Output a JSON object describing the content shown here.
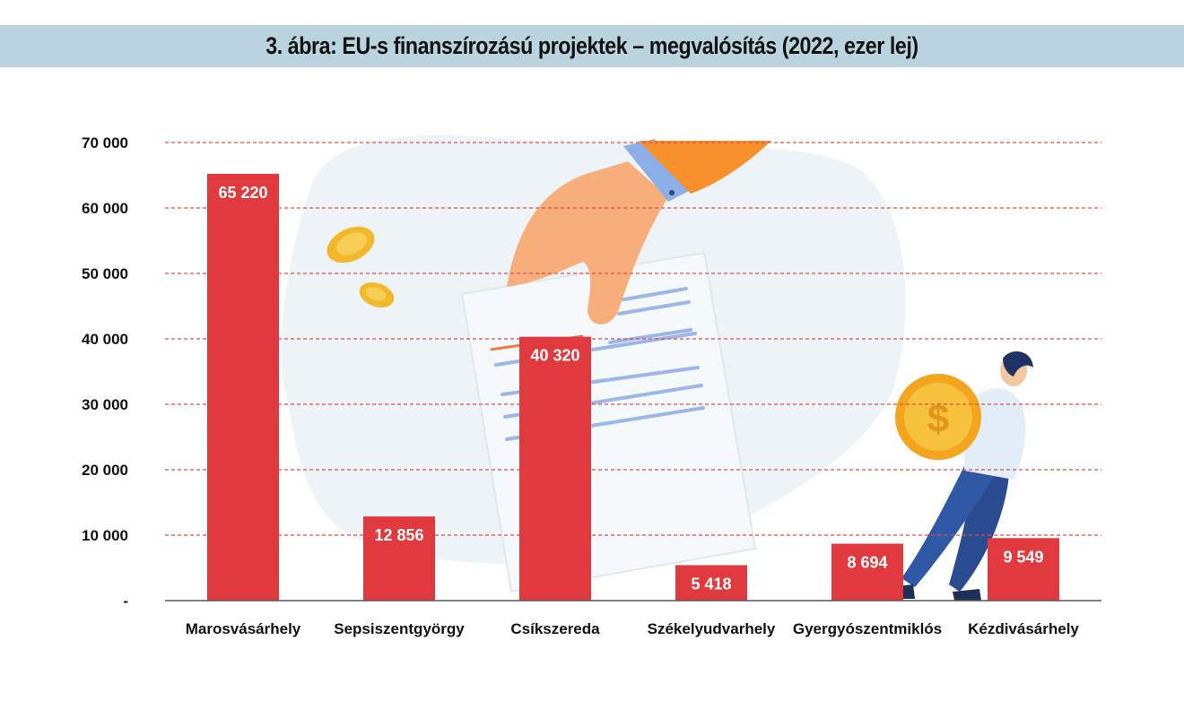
{
  "title": "3. ábra: EU-s finanszírozású projektek – megvalósítás (2022, ezer lej)",
  "colors": {
    "bar": "#e0393e",
    "grid": "#e04a4a",
    "title_band": "#b9d3df",
    "blob": "#eef3f8"
  },
  "chart_data": {
    "type": "bar",
    "title": "3. ábra: EU-s finanszírozású projektek – megvalósítás (2022, ezer lej)",
    "categories": [
      "Marosvásárhely",
      "Sepsiszentgyörgy",
      "Csíkszereda",
      "Székelyudvarhely",
      "Gyergyószentmiklós",
      "Kézdivásárhely"
    ],
    "values": [
      65220,
      12856,
      40320,
      5418,
      8694,
      9549
    ],
    "value_labels": [
      "65 220",
      "12 856",
      "40 320",
      "5 418",
      "8 694",
      "9 549"
    ],
    "ylim": [
      0,
      70000
    ],
    "yticks": [
      0,
      10000,
      20000,
      30000,
      40000,
      50000,
      60000,
      70000
    ],
    "ytick_labels": [
      "-",
      "10 000",
      "20 000",
      "30 000",
      "40 000",
      "50 000",
      "60 000",
      "70 000"
    ],
    "grid": "dashed horizontal"
  }
}
